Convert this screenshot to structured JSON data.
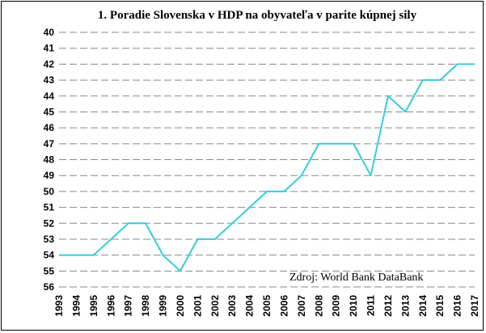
{
  "chart_data": {
    "type": "line",
    "title": "1. Poradie Slovenska v HDP na obyvateľa v parite kúpnej sily",
    "xlabel": "",
    "ylabel": "",
    "y_reversed": true,
    "ylim": [
      40,
      56
    ],
    "grid": "horizontal dashed",
    "legend": "none",
    "annotation": "Zdroj: World Bank DataBank",
    "line_color": "#33CCDD",
    "x": [
      "1993",
      "1994",
      "1995",
      "1996",
      "1997",
      "1998",
      "1999",
      "2000",
      "2001",
      "2002",
      "2003",
      "2004",
      "2005",
      "2006",
      "2007",
      "2008",
      "2009",
      "2010",
      "2011",
      "2012",
      "2013",
      "2014",
      "2015",
      "2016",
      "2017"
    ],
    "y_ticks": [
      "40",
      "41",
      "42",
      "43",
      "44",
      "45",
      "46",
      "47",
      "48",
      "49",
      "50",
      "51",
      "52",
      "53",
      "54",
      "55",
      "56"
    ],
    "series": [
      {
        "values": [
          54,
          54,
          54,
          53,
          52,
          52,
          54,
          55,
          53,
          53,
          52,
          51,
          50,
          50,
          49,
          47,
          47,
          47,
          49,
          44,
          45,
          43,
          43,
          42,
          42
        ]
      }
    ]
  }
}
